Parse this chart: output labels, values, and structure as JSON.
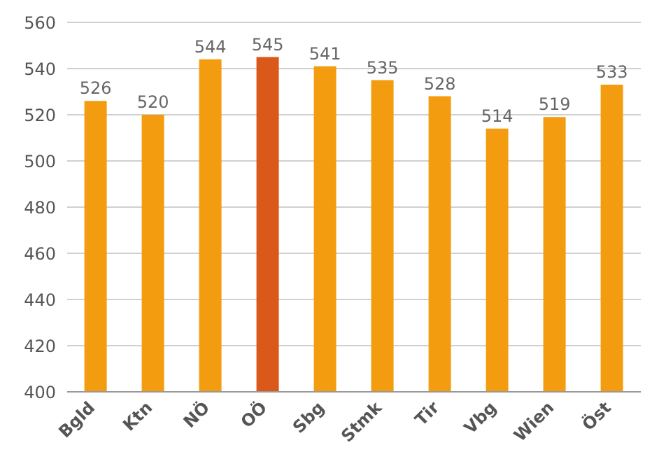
{
  "chart_data": {
    "type": "bar",
    "categories": [
      "Bgld",
      "Ktn",
      "NÖ",
      "OÖ",
      "Sbg",
      "Stmk",
      "Tir",
      "Vbg",
      "Wien",
      "Öst"
    ],
    "values": [
      526,
      520,
      544,
      545,
      541,
      535,
      528,
      514,
      519,
      533
    ],
    "colors": [
      "#f39c0f",
      "#f39c0f",
      "#f39c0f",
      "#d9581a",
      "#f39c0f",
      "#f39c0f",
      "#f39c0f",
      "#f39c0f",
      "#f39c0f",
      "#f39c0f"
    ],
    "ylim": [
      400,
      560
    ],
    "yticks": [
      400,
      420,
      440,
      460,
      480,
      500,
      520,
      540,
      560
    ],
    "grid": "y",
    "data_labels": true
  }
}
